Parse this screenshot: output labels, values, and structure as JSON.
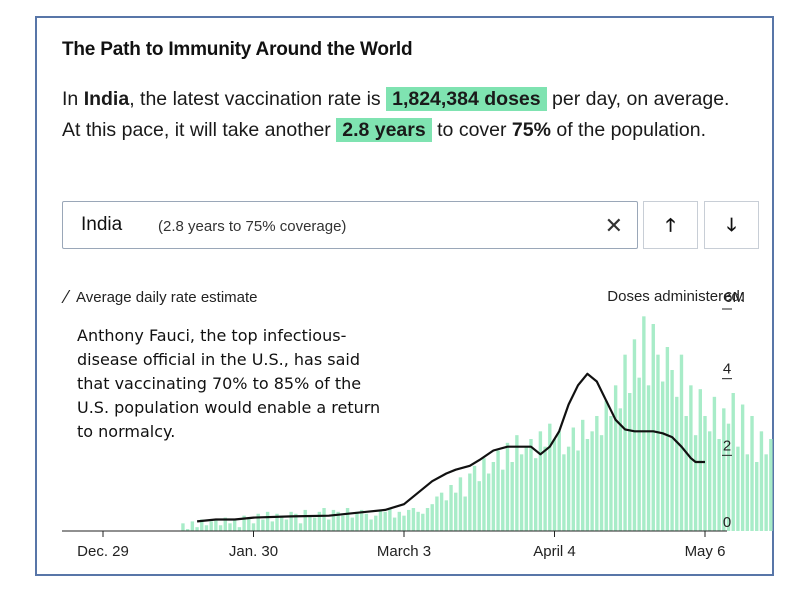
{
  "header": {
    "title": "The Path to Immunity Around the World"
  },
  "summary": {
    "prefix": "In ",
    "country": "India",
    "mid1": ", the latest vaccination rate is ",
    "rate": "1,824,384 doses",
    "mid2": " per day, on average. At this pace, it will take another ",
    "time": "2.8 years",
    "mid3": " to cover ",
    "coverage": "75%",
    "suffix": " of the population."
  },
  "selector": {
    "country": "India",
    "detail": "(2.8 years to 75% coverage)",
    "clear_icon": "close-icon",
    "up_icon": "arrow-up-icon",
    "down_icon": "arrow-down-icon"
  },
  "annotation": "Anthony Fauci, the top infectious-disease official in the U.S., has said that vaccinating 70% to 85% of the U.S. population would enable a return to normalcy.",
  "colors": {
    "bar": "#a8ecc8",
    "line": "#111111",
    "highlight": "#7fe3b1",
    "frame": "#5876a8"
  },
  "chart_data": {
    "type": "bar",
    "title": "Doses administered",
    "legend": "Average daily rate estimate",
    "ylabel": "Doses administered",
    "y_unit": "M",
    "ylim": [
      0,
      6
    ],
    "y_ticks": [
      {
        "value": 0,
        "label": "0"
      },
      {
        "value": 2,
        "label": "2"
      },
      {
        "value": 4,
        "label": "4"
      },
      {
        "value": 6,
        "label": "6M"
      }
    ],
    "x_ticks": [
      {
        "day": 0,
        "label": "Dec. 29"
      },
      {
        "day": 32,
        "label": "Jan. 30"
      },
      {
        "day": 64,
        "label": "March 3"
      },
      {
        "day": 96,
        "label": "April 4"
      },
      {
        "day": 128,
        "label": "May 6"
      }
    ],
    "series": [
      {
        "name": "Daily doses",
        "kind": "bar",
        "start_day": 17,
        "values": [
          0.2,
          0.05,
          0.25,
          0.1,
          0.3,
          0.15,
          0.25,
          0.3,
          0.15,
          0.35,
          0.2,
          0.3,
          0.1,
          0.4,
          0.35,
          0.2,
          0.45,
          0.3,
          0.5,
          0.25,
          0.45,
          0.4,
          0.3,
          0.5,
          0.45,
          0.2,
          0.55,
          0.4,
          0.35,
          0.5,
          0.6,
          0.3,
          0.55,
          0.5,
          0.4,
          0.6,
          0.35,
          0.5,
          0.55,
          0.45,
          0.3,
          0.4,
          0.55,
          0.5,
          0.6,
          0.35,
          0.5,
          0.4,
          0.55,
          0.6,
          0.5,
          0.45,
          0.6,
          0.7,
          0.9,
          1.0,
          0.8,
          1.2,
          1.0,
          1.4,
          0.9,
          1.5,
          1.7,
          1.3,
          1.9,
          1.5,
          1.8,
          2.1,
          1.6,
          2.3,
          1.8,
          2.5,
          2.0,
          2.2,
          2.4,
          1.9,
          2.6,
          2.2,
          2.8,
          2.4,
          2.6,
          2.0,
          2.2,
          2.7,
          2.1,
          2.9,
          2.4,
          2.6,
          3.0,
          2.5,
          3.4,
          3.0,
          3.8,
          3.2,
          4.6,
          3.6,
          5.0,
          4.0,
          5.6,
          3.8,
          5.4,
          4.6,
          3.9,
          4.8,
          4.2,
          3.5,
          4.6,
          3.0,
          3.8,
          2.5,
          3.7,
          3.0,
          2.6,
          3.5,
          2.4,
          3.2,
          2.8,
          3.6,
          2.2,
          3.3,
          2.0,
          3.0,
          1.8,
          2.6,
          2.0,
          2.4
        ]
      },
      {
        "name": "Average daily rate estimate",
        "kind": "line",
        "points": [
          [
            20,
            0.25
          ],
          [
            24,
            0.3
          ],
          [
            28,
            0.3
          ],
          [
            32,
            0.35
          ],
          [
            40,
            0.38
          ],
          [
            48,
            0.4
          ],
          [
            56,
            0.5
          ],
          [
            60,
            0.55
          ],
          [
            64,
            0.7
          ],
          [
            67,
            1.0
          ],
          [
            70,
            1.3
          ],
          [
            73,
            1.5
          ],
          [
            75,
            1.6
          ],
          [
            78,
            1.7
          ],
          [
            80,
            1.85
          ],
          [
            83,
            2.1
          ],
          [
            86,
            2.2
          ],
          [
            89,
            2.2
          ],
          [
            91,
            2.2
          ],
          [
            93,
            2.0
          ],
          [
            95,
            2.2
          ],
          [
            97,
            2.6
          ],
          [
            99,
            3.3
          ],
          [
            101,
            3.8
          ],
          [
            103,
            4.1
          ],
          [
            105,
            3.9
          ],
          [
            107,
            3.4
          ],
          [
            109,
            2.9
          ],
          [
            111,
            2.65
          ],
          [
            113,
            2.6
          ],
          [
            115,
            2.6
          ],
          [
            117,
            2.6
          ],
          [
            119,
            2.55
          ],
          [
            121,
            2.45
          ],
          [
            123,
            2.2
          ],
          [
            125,
            1.9
          ],
          [
            126,
            1.8
          ],
          [
            128,
            1.8
          ]
        ]
      }
    ]
  }
}
